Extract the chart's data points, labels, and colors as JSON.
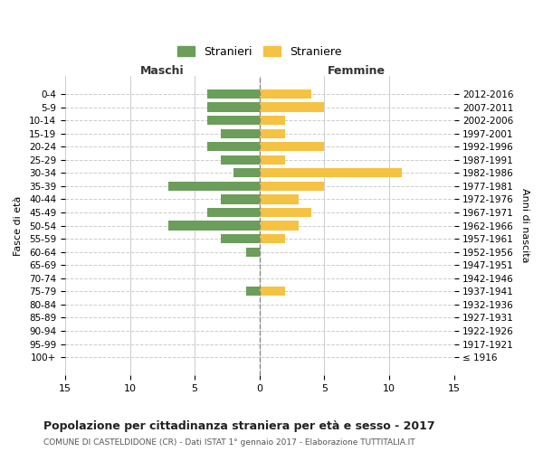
{
  "age_groups": [
    "100+",
    "95-99",
    "90-94",
    "85-89",
    "80-84",
    "75-79",
    "70-74",
    "65-69",
    "60-64",
    "55-59",
    "50-54",
    "45-49",
    "40-44",
    "35-39",
    "30-34",
    "25-29",
    "20-24",
    "15-19",
    "10-14",
    "5-9",
    "0-4"
  ],
  "birth_years": [
    "≤ 1916",
    "1917-1921",
    "1922-1926",
    "1927-1931",
    "1932-1936",
    "1937-1941",
    "1942-1946",
    "1947-1951",
    "1952-1956",
    "1957-1961",
    "1962-1966",
    "1967-1971",
    "1972-1976",
    "1977-1981",
    "1982-1986",
    "1987-1991",
    "1992-1996",
    "1997-2001",
    "2002-2006",
    "2007-2011",
    "2012-2016"
  ],
  "maschi": [
    0,
    0,
    0,
    0,
    0,
    1,
    0,
    0,
    1,
    3,
    7,
    4,
    3,
    7,
    2,
    3,
    4,
    3,
    4,
    4,
    4
  ],
  "femmine": [
    0,
    0,
    0,
    0,
    0,
    2,
    0,
    0,
    0,
    2,
    3,
    4,
    3,
    5,
    11,
    2,
    5,
    2,
    2,
    5,
    4
  ],
  "color_maschi": "#6a9e5a",
  "color_femmine": "#f5c242",
  "title": "Popolazione per cittadinanza straniera per età e sesso - 2017",
  "subtitle": "COMUNE DI CASTELDIDONE (CR) - Dati ISTAT 1° gennaio 2017 - Elaborazione TUTTITALIA.IT",
  "xlabel_left": "Maschi",
  "xlabel_right": "Femmine",
  "ylabel_left": "Fasce di età",
  "ylabel_right": "Anni di nascita",
  "legend_maschi": "Stranieri",
  "legend_femmine": "Straniere",
  "xlim": 15,
  "xticks": [
    15,
    10,
    5,
    0,
    5,
    10,
    15
  ],
  "background_color": "#ffffff",
  "grid_color": "#cccccc"
}
